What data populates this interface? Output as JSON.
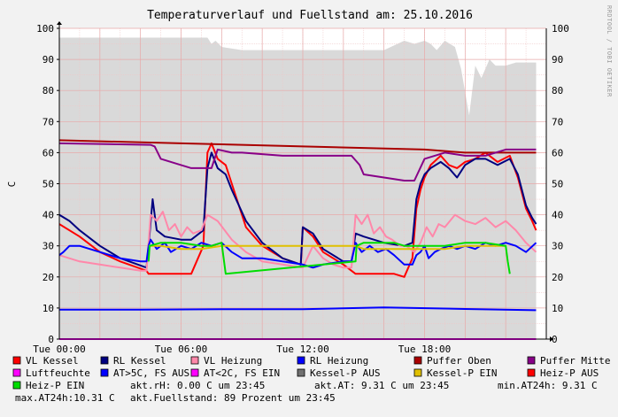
{
  "chart_data": {
    "type": "line",
    "title": "Temperaturverlauf und Fuellstand am: 25.10.2016",
    "watermark": "RRDTOOL / TOBI OETIKER",
    "ylabel": "C",
    "ylim": [
      0,
      100
    ],
    "yticks": [
      0,
      10,
      20,
      30,
      40,
      50,
      60,
      70,
      80,
      90,
      100
    ],
    "xlim": [
      "Tue 00:00",
      "Tue 23:59"
    ],
    "x_tick_labels": [
      "Tue 00:00",
      "Tue 06:00",
      "Tue 12:00",
      "Tue 18:00"
    ],
    "x_tick_hours": [
      0,
      6,
      12,
      18
    ],
    "grid": true,
    "background_color": "#ffffff",
    "fill_area": {
      "name": "Fuellstand",
      "color": "#d9d9d9",
      "x_hours": [
        0,
        4,
        7.3,
        7.5,
        7.7,
        8,
        9,
        11,
        14,
        15,
        16,
        17,
        17.5,
        18,
        18.3,
        18.6,
        19,
        19.5,
        19.8,
        20.2,
        20.5,
        20.8,
        21.2,
        21.5,
        22,
        22.5,
        23,
        23.5
      ],
      "values": [
        97,
        97,
        97,
        95,
        96,
        94,
        93,
        93,
        93,
        93,
        93,
        96,
        95,
        96,
        95,
        93,
        96,
        94,
        87,
        72,
        88,
        84,
        90,
        88,
        88,
        89,
        89,
        89
      ]
    },
    "series": [
      {
        "name": "VL Kessel",
        "color": "#ff0000",
        "x": [
          0,
          1,
          2,
          3,
          4.3,
          4.4,
          4.5,
          4.8,
          5.2,
          6,
          6.5,
          7.1,
          7.3,
          7.5,
          7.8,
          8.2,
          8.5,
          9.2,
          10,
          11,
          11.9,
          12,
          12.5,
          13,
          14,
          14.4,
          14.6,
          15,
          15.5,
          16.5,
          17,
          17.4,
          17.6,
          17.8,
          18,
          18.3,
          18.8,
          19.2,
          19.6,
          20,
          20.5,
          21,
          21.6,
          22.2,
          22.6,
          23,
          23.3,
          23.5
        ],
        "values": [
          37,
          33,
          28,
          25,
          22,
          21,
          21,
          21,
          21,
          21,
          21,
          30,
          60,
          63,
          58,
          56,
          50,
          36,
          30,
          26,
          24,
          36,
          33,
          28,
          24,
          22,
          21,
          21,
          21,
          21,
          20,
          26,
          42,
          48,
          52,
          56,
          59,
          56,
          55,
          57,
          58,
          60,
          57,
          59,
          52,
          42,
          38,
          35
        ]
      },
      {
        "name": "RL Kessel",
        "color": "#000080",
        "x": [
          0,
          0.5,
          1,
          2,
          3,
          4.3,
          4.4,
          4.6,
          4.8,
          5.2,
          6,
          6.5,
          7.1,
          7.3,
          7.5,
          7.8,
          8.2,
          8.5,
          9.2,
          10,
          11,
          11.9,
          12,
          12.5,
          13,
          14,
          14.4,
          14.6,
          15,
          16,
          17,
          17.4,
          17.6,
          17.8,
          18,
          18.3,
          18.8,
          19.2,
          19.6,
          20,
          20.5,
          21,
          21.6,
          22.2,
          22.6,
          23,
          23.3,
          23.5
        ],
        "values": [
          40,
          38,
          35,
          30,
          26,
          23,
          30,
          45,
          35,
          33,
          32,
          32,
          35,
          55,
          60,
          55,
          53,
          48,
          38,
          31,
          26,
          24,
          36,
          34,
          29,
          25,
          25,
          34,
          33,
          31,
          30,
          31,
          45,
          50,
          53,
          55,
          57,
          55,
          52,
          56,
          58,
          58,
          56,
          58,
          53,
          43,
          39,
          37
        ]
      },
      {
        "name": "VL Heizung",
        "color": "#ff88aa",
        "x": [
          0,
          1,
          2,
          3,
          4,
          4.3,
          4.5,
          4.8,
          5.1,
          5.4,
          5.7,
          6,
          6.3,
          6.6,
          7,
          7.3,
          7.8,
          8.5,
          9.2,
          10,
          11,
          12,
          12.5,
          13,
          13.5,
          14,
          14.4,
          14.6,
          14.9,
          15.2,
          15.5,
          15.8,
          16.1,
          16.4,
          16.8,
          17.1,
          17.5,
          17.8,
          18.1,
          18.4,
          18.7,
          19,
          19.5,
          20,
          20.5,
          21,
          21.5,
          22,
          22.5,
          23,
          23.5
        ],
        "values": [
          27,
          25,
          24,
          23,
          22,
          22,
          40,
          38,
          41,
          35,
          37,
          33,
          36,
          34,
          35,
          40,
          38,
          32,
          28,
          25,
          24,
          23,
          30,
          26,
          24,
          23,
          23,
          40,
          37,
          40,
          34,
          36,
          33,
          32,
          30,
          30,
          28,
          31,
          36,
          33,
          37,
          36,
          40,
          38,
          37,
          39,
          36,
          38,
          35,
          31,
          28
        ]
      },
      {
        "name": "RL Heizung",
        "color": "#0000ff",
        "x": [
          0,
          0.2,
          0.5,
          1,
          2,
          3,
          4,
          4.3,
          4.4,
          4.5,
          4.8,
          5.2,
          5.5,
          6,
          6.5,
          7,
          7.5,
          8,
          8.5,
          9,
          10,
          11,
          12,
          12.5,
          13,
          14,
          14.4,
          14.6,
          14.9,
          15.3,
          15.7,
          16.1,
          16.5,
          17,
          17.4,
          17.6,
          17.8,
          18,
          18.2,
          18.5,
          18.8,
          19.2,
          19.6,
          20,
          20.5,
          21,
          21.5,
          22,
          22.5,
          23,
          23.5
        ],
        "values": [
          27,
          28,
          30,
          30,
          28,
          26,
          25,
          25,
          30,
          32,
          29,
          31,
          28,
          30,
          29,
          31,
          30,
          31,
          28,
          26,
          26,
          25,
          24,
          23,
          24,
          25,
          25,
          31,
          28,
          30,
          28,
          29,
          27,
          24,
          24,
          27,
          28,
          30,
          26,
          28,
          29,
          30,
          29,
          30,
          29,
          31,
          30,
          31,
          30,
          28,
          31
        ]
      },
      {
        "name": "Puffer Oben",
        "color": "#aa0000",
        "x": [
          0,
          6,
          12,
          18,
          20,
          22,
          23.5
        ],
        "values": [
          64,
          63,
          62,
          61,
          60,
          60,
          60
        ]
      },
      {
        "name": "Puffer Mitte",
        "color": "#880088",
        "x": [
          0,
          4.5,
          4.7,
          5,
          6,
          6.5,
          7,
          7.5,
          7.8,
          8.5,
          9,
          11,
          13,
          14,
          14.4,
          14.8,
          15,
          16,
          17,
          17.5,
          18,
          19,
          20,
          21,
          22,
          23,
          23.5
        ],
        "values": [
          63,
          62.5,
          62,
          58,
          56,
          55,
          55,
          55,
          61,
          60,
          60,
          59,
          59,
          59,
          59,
          56,
          53,
          52,
          51,
          51,
          58,
          60,
          59,
          59,
          61,
          61,
          61
        ]
      },
      {
        "name": "Luftfeuchte",
        "color": "#ff00ff",
        "x": [
          0,
          23.5
        ],
        "values": [
          0,
          0
        ]
      },
      {
        "name": "AT>5C, FS AUS",
        "color": "#0000ff",
        "x": [
          0,
          4,
          8,
          12,
          16,
          20,
          23.5
        ],
        "values": [
          9.5,
          9.5,
          9.6,
          9.6,
          10.2,
          9.7,
          9.3
        ]
      },
      {
        "name": "AT<2C, FS EIN",
        "color": "#ff00ff",
        "x": [],
        "values": []
      },
      {
        "name": "Kessel-P AUS",
        "color": "#707070",
        "x": [],
        "values": []
      },
      {
        "name": "Kessel-P EIN",
        "color": "#e0c000",
        "x": [
          4.4,
          5,
          6,
          7,
          8,
          14.6,
          15,
          16,
          17,
          18,
          19,
          20,
          21,
          22
        ],
        "values": [
          30,
          30,
          29,
          29,
          30,
          30,
          29,
          29,
          29,
          29,
          29,
          30,
          30,
          30
        ]
      },
      {
        "name": "Heiz-P AUS",
        "color": "#ff0000",
        "x": [],
        "values": []
      },
      {
        "name": "Heiz-P EIN",
        "color": "#00dd00",
        "x": [
          4.4,
          4.45,
          5,
          6,
          7,
          7.5,
          8,
          8.1,
          8.2,
          14.6,
          14.65,
          15,
          16,
          16.5,
          17,
          17.5,
          18,
          18.3,
          19,
          20,
          21,
          22,
          22.1,
          22.2
        ],
        "values": [
          25,
          30,
          31,
          31,
          30,
          30,
          31,
          26,
          21,
          25,
          30,
          31,
          31,
          31,
          30,
          30,
          30,
          30,
          30,
          31,
          31,
          30,
          25,
          21
        ]
      }
    ]
  },
  "legend": [
    {
      "label": "VL Kessel",
      "color": "#ff0000"
    },
    {
      "label": "RL Kessel",
      "color": "#000080"
    },
    {
      "label": "VL Heizung",
      "color": "#ff88aa"
    },
    {
      "label": "RL Heizung",
      "color": "#0000ff"
    },
    {
      "label": "Puffer Oben",
      "color": "#aa0000"
    },
    {
      "label": "Puffer Mitte",
      "color": "#880088"
    },
    {
      "label": "Luftfeuchte",
      "color": "#ff00ff"
    },
    {
      "label": "AT>5C, FS AUS",
      "color": "#0000ff"
    },
    {
      "label": "AT<2C, FS EIN",
      "color": "#ff00ff"
    },
    {
      "label": "Kessel-P AUS",
      "color": "#707070"
    },
    {
      "label": "Kessel-P EIN",
      "color": "#e0c000"
    },
    {
      "label": "Heiz-P AUS",
      "color": "#ff0000"
    },
    {
      "label": "Heiz-P EIN",
      "color": "#00dd00"
    }
  ],
  "stats": {
    "rh": "akt.rH: 0.00 C um 23:45",
    "at": "akt.AT: 9.31 C um 23:45",
    "min_at": "min.AT24h: 9.31 C",
    "max_at": "max.AT24h:10.31 C",
    "fuellstand": "akt.Fuellstand:   89 Prozent um 23:45"
  }
}
